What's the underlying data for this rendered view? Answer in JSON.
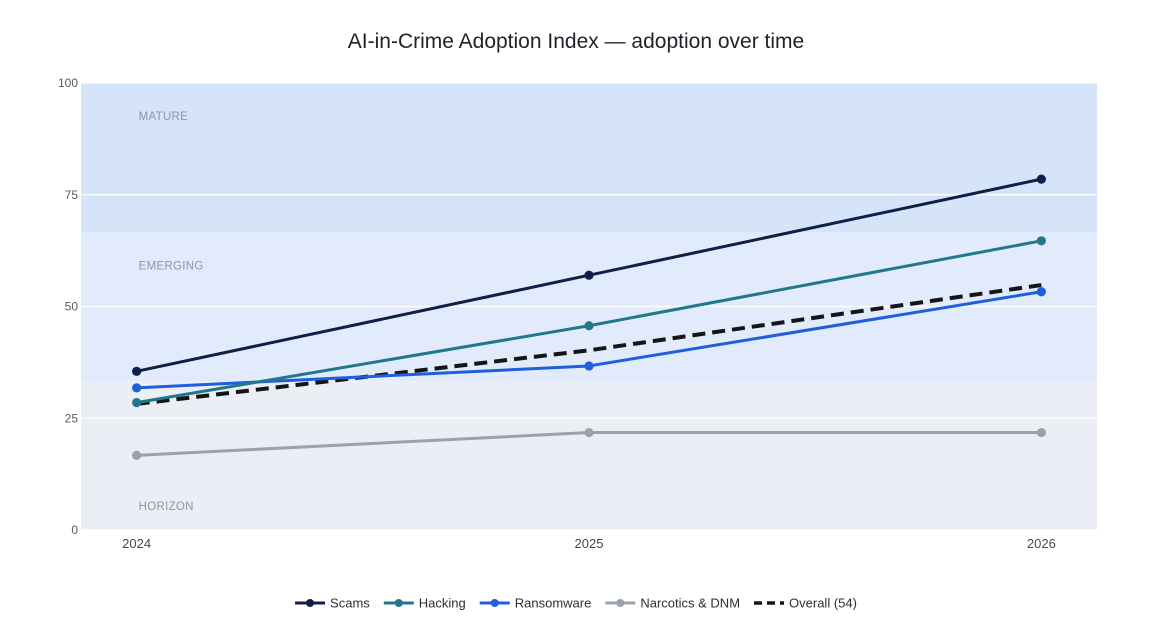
{
  "chart_data": {
    "type": "line",
    "title": "AI-in-Crime Adoption Index — adoption over time",
    "xlabel": "",
    "ylabel": "",
    "x": [
      "2024",
      "2025",
      "2026"
    ],
    "xlim": [
      2023.877,
      2026.123
    ],
    "ylim": [
      0,
      100
    ],
    "yticks": [
      0,
      25,
      50,
      75,
      100
    ],
    "grid": true,
    "legend_position": "bottom-center",
    "bands": [
      {
        "label": "HORIZON",
        "from": 0,
        "to": 33.3,
        "color": "#ebeff5"
      },
      {
        "label": "EMERGING",
        "from": 33.3,
        "to": 66.5,
        "color": "#e1ebfb"
      },
      {
        "label": "MATURE",
        "from": 66.5,
        "to": 100,
        "color": "#d6e4fa"
      }
    ],
    "series": [
      {
        "name": "Scams",
        "values": [
          35.5,
          57,
          78.5
        ],
        "color": "#0f1f45",
        "dash": false,
        "markers": true
      },
      {
        "name": "Hacking",
        "values": [
          28.5,
          45.7,
          64.7
        ],
        "color": "#21788a",
        "dash": false,
        "markers": true
      },
      {
        "name": "Ransomware",
        "values": [
          31.8,
          36.7,
          53.3
        ],
        "color": "#1f5fdc",
        "dash": false,
        "markers": true
      },
      {
        "name": "Narcotics & DNM",
        "values": [
          16.7,
          21.8,
          21.8
        ],
        "color": "#9aa2ad",
        "dash": false,
        "markers": true
      },
      {
        "name": "Overall (54)",
        "values": [
          28.2,
          40.2,
          54.8
        ],
        "color": "#151515",
        "dash": true,
        "markers": false
      }
    ]
  }
}
